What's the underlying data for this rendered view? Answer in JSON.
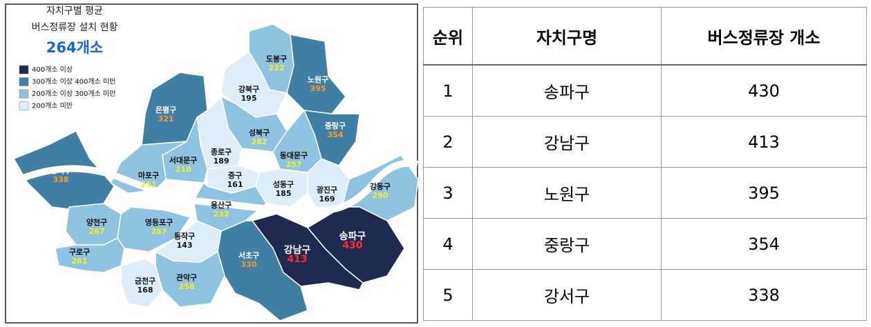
{
  "map": {
    "title": [
      "자치구별 평균",
      "버스정류장 설치 현황"
    ],
    "average": "264개소",
    "legend": [
      {
        "label": "400개소 이상",
        "color": "#1e2a4f"
      },
      {
        "label": "300개소 이상 400개소 미만",
        "color": "#3f80a4"
      },
      {
        "label": "200개소 이상 300개소 미만",
        "color": "#8ec4e2"
      },
      {
        "label": "200개소 미만",
        "color": "#ddeef8"
      }
    ],
    "districts": [
      {
        "name": "도봉구",
        "value": 232,
        "color": "#8ec4e2"
      },
      {
        "name": "노원구",
        "value": 395,
        "color": "#3f80a4"
      },
      {
        "name": "강북구",
        "value": 195,
        "color": "#ddeef8"
      },
      {
        "name": "은평구",
        "value": 321,
        "color": "#3f80a4"
      },
      {
        "name": "성북구",
        "value": 282,
        "color": "#8ec4e2"
      },
      {
        "name": "중랑구",
        "value": 354,
        "color": "#3f80a4"
      },
      {
        "name": "종로구",
        "value": 189,
        "color": "#ddeef8"
      },
      {
        "name": "동대문구",
        "value": 257,
        "color": "#8ec4e2"
      },
      {
        "name": "서대문구",
        "value": 210,
        "color": "#8ec4e2"
      },
      {
        "name": "마포구",
        "value": 251,
        "color": "#8ec4e2"
      },
      {
        "name": "강서구",
        "value": 338,
        "color": "#3f80a4"
      },
      {
        "name": "중구",
        "value": 161,
        "color": "#ddeef8"
      },
      {
        "name": "성동구",
        "value": 185,
        "color": "#ddeef8"
      },
      {
        "name": "광진구",
        "value": 169,
        "color": "#ddeef8"
      },
      {
        "name": "강동구",
        "value": 290,
        "color": "#8ec4e2"
      },
      {
        "name": "용산구",
        "value": 232,
        "color": "#8ec4e2"
      },
      {
        "name": "양천구",
        "value": 267,
        "color": "#8ec4e2"
      },
      {
        "name": "영등포구",
        "value": 287,
        "color": "#8ec4e2"
      },
      {
        "name": "동작구",
        "value": 143,
        "color": "#ddeef8"
      },
      {
        "name": "구로구",
        "value": 261,
        "color": "#8ec4e2"
      },
      {
        "name": "송파구",
        "value": 430,
        "color": "#1e2a4f"
      },
      {
        "name": "강남구",
        "value": 413,
        "color": "#1e2a4f"
      },
      {
        "name": "서초구",
        "value": 330,
        "color": "#3f80a4"
      },
      {
        "name": "금천구",
        "value": 168,
        "color": "#ddeef8"
      },
      {
        "name": "관악구",
        "value": 258,
        "color": "#8ec4e2"
      }
    ]
  },
  "table": {
    "header": [
      "순위",
      "자치구명",
      "버스정류장 개소"
    ],
    "rows": [
      [
        1,
        "송파구",
        430
      ],
      [
        2,
        "강남구",
        413
      ],
      [
        3,
        "노원구",
        395
      ],
      [
        4,
        "중랑구",
        354
      ],
      [
        5,
        "강서구",
        338
      ]
    ]
  }
}
